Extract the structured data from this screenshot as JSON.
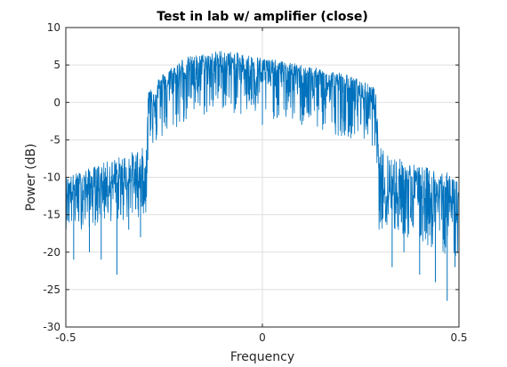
{
  "chart_data": {
    "type": "line",
    "title": "Test in lab w/ amplifier (close)",
    "xlabel": "Frequency",
    "ylabel": "Power (dB)",
    "xlim": [
      -0.5,
      0.5
    ],
    "ylim": [
      -30,
      10
    ],
    "xticks": [
      -0.5,
      0,
      0.5
    ],
    "xtick_labels": [
      "-0.5",
      "0",
      "0.5"
    ],
    "yticks": [
      -30,
      -25,
      -20,
      -15,
      -10,
      -5,
      0,
      5,
      10
    ],
    "ytick_labels": [
      "-30",
      "-25",
      "-20",
      "-15",
      "-10",
      "-5",
      "0",
      "5",
      "10"
    ],
    "grid": true,
    "legend": "none",
    "color": "#0072BD",
    "series": [
      {
        "envelope": {
          "x": [
            -0.5,
            -0.45,
            -0.4,
            -0.35,
            -0.3,
            -0.295,
            -0.29,
            -0.25,
            -0.2,
            -0.15,
            -0.1,
            -0.05,
            0,
            0.05,
            0.1,
            0.15,
            0.2,
            0.25,
            0.285,
            0.29,
            0.295,
            0.3,
            0.35,
            0.4,
            0.45,
            0.5
          ],
          "upper": [
            -10,
            -9,
            -8,
            -7,
            -6,
            -6,
            2,
            4,
            6,
            6.5,
            7,
            6.5,
            6,
            5.5,
            5,
            4.5,
            4,
            3,
            2,
            1.5,
            -6,
            -6,
            -7.5,
            -8.5,
            -9,
            -10
          ],
          "center": [
            -12,
            -11.5,
            -11,
            -10.5,
            -10.5,
            -10.5,
            0,
            2,
            4,
            4.5,
            5,
            4.5,
            4,
            4,
            3.5,
            2.5,
            2,
            1,
            0,
            0,
            -11,
            -11.5,
            -12,
            -12.5,
            -13,
            -13.5
          ],
          "lower": [
            -17,
            -17,
            -16,
            -16,
            -15,
            -15,
            -6,
            -5,
            -3,
            -2,
            -1,
            -2,
            -2,
            -2.5,
            -3,
            -4,
            -4.5,
            -5,
            -6,
            -6,
            -17,
            -17,
            -18,
            -19,
            -20,
            -21
          ]
        },
        "deep_dips": [
          {
            "x": -0.48,
            "y": -21
          },
          {
            "x": -0.44,
            "y": -20
          },
          {
            "x": -0.41,
            "y": -21
          },
          {
            "x": -0.37,
            "y": -23
          },
          {
            "x": -0.34,
            "y": -17
          },
          {
            "x": -0.31,
            "y": -18
          },
          {
            "x": -0.27,
            "y": -5
          },
          {
            "x": -0.2,
            "y": -2
          },
          {
            "x": 0.0,
            "y": -3
          },
          {
            "x": 0.1,
            "y": -3
          },
          {
            "x": 0.22,
            "y": -4
          },
          {
            "x": 0.33,
            "y": -22
          },
          {
            "x": 0.36,
            "y": -20
          },
          {
            "x": 0.4,
            "y": -23
          },
          {
            "x": 0.44,
            "y": -24
          },
          {
            "x": 0.47,
            "y": -26.5
          },
          {
            "x": 0.49,
            "y": -22
          }
        ]
      }
    ]
  }
}
